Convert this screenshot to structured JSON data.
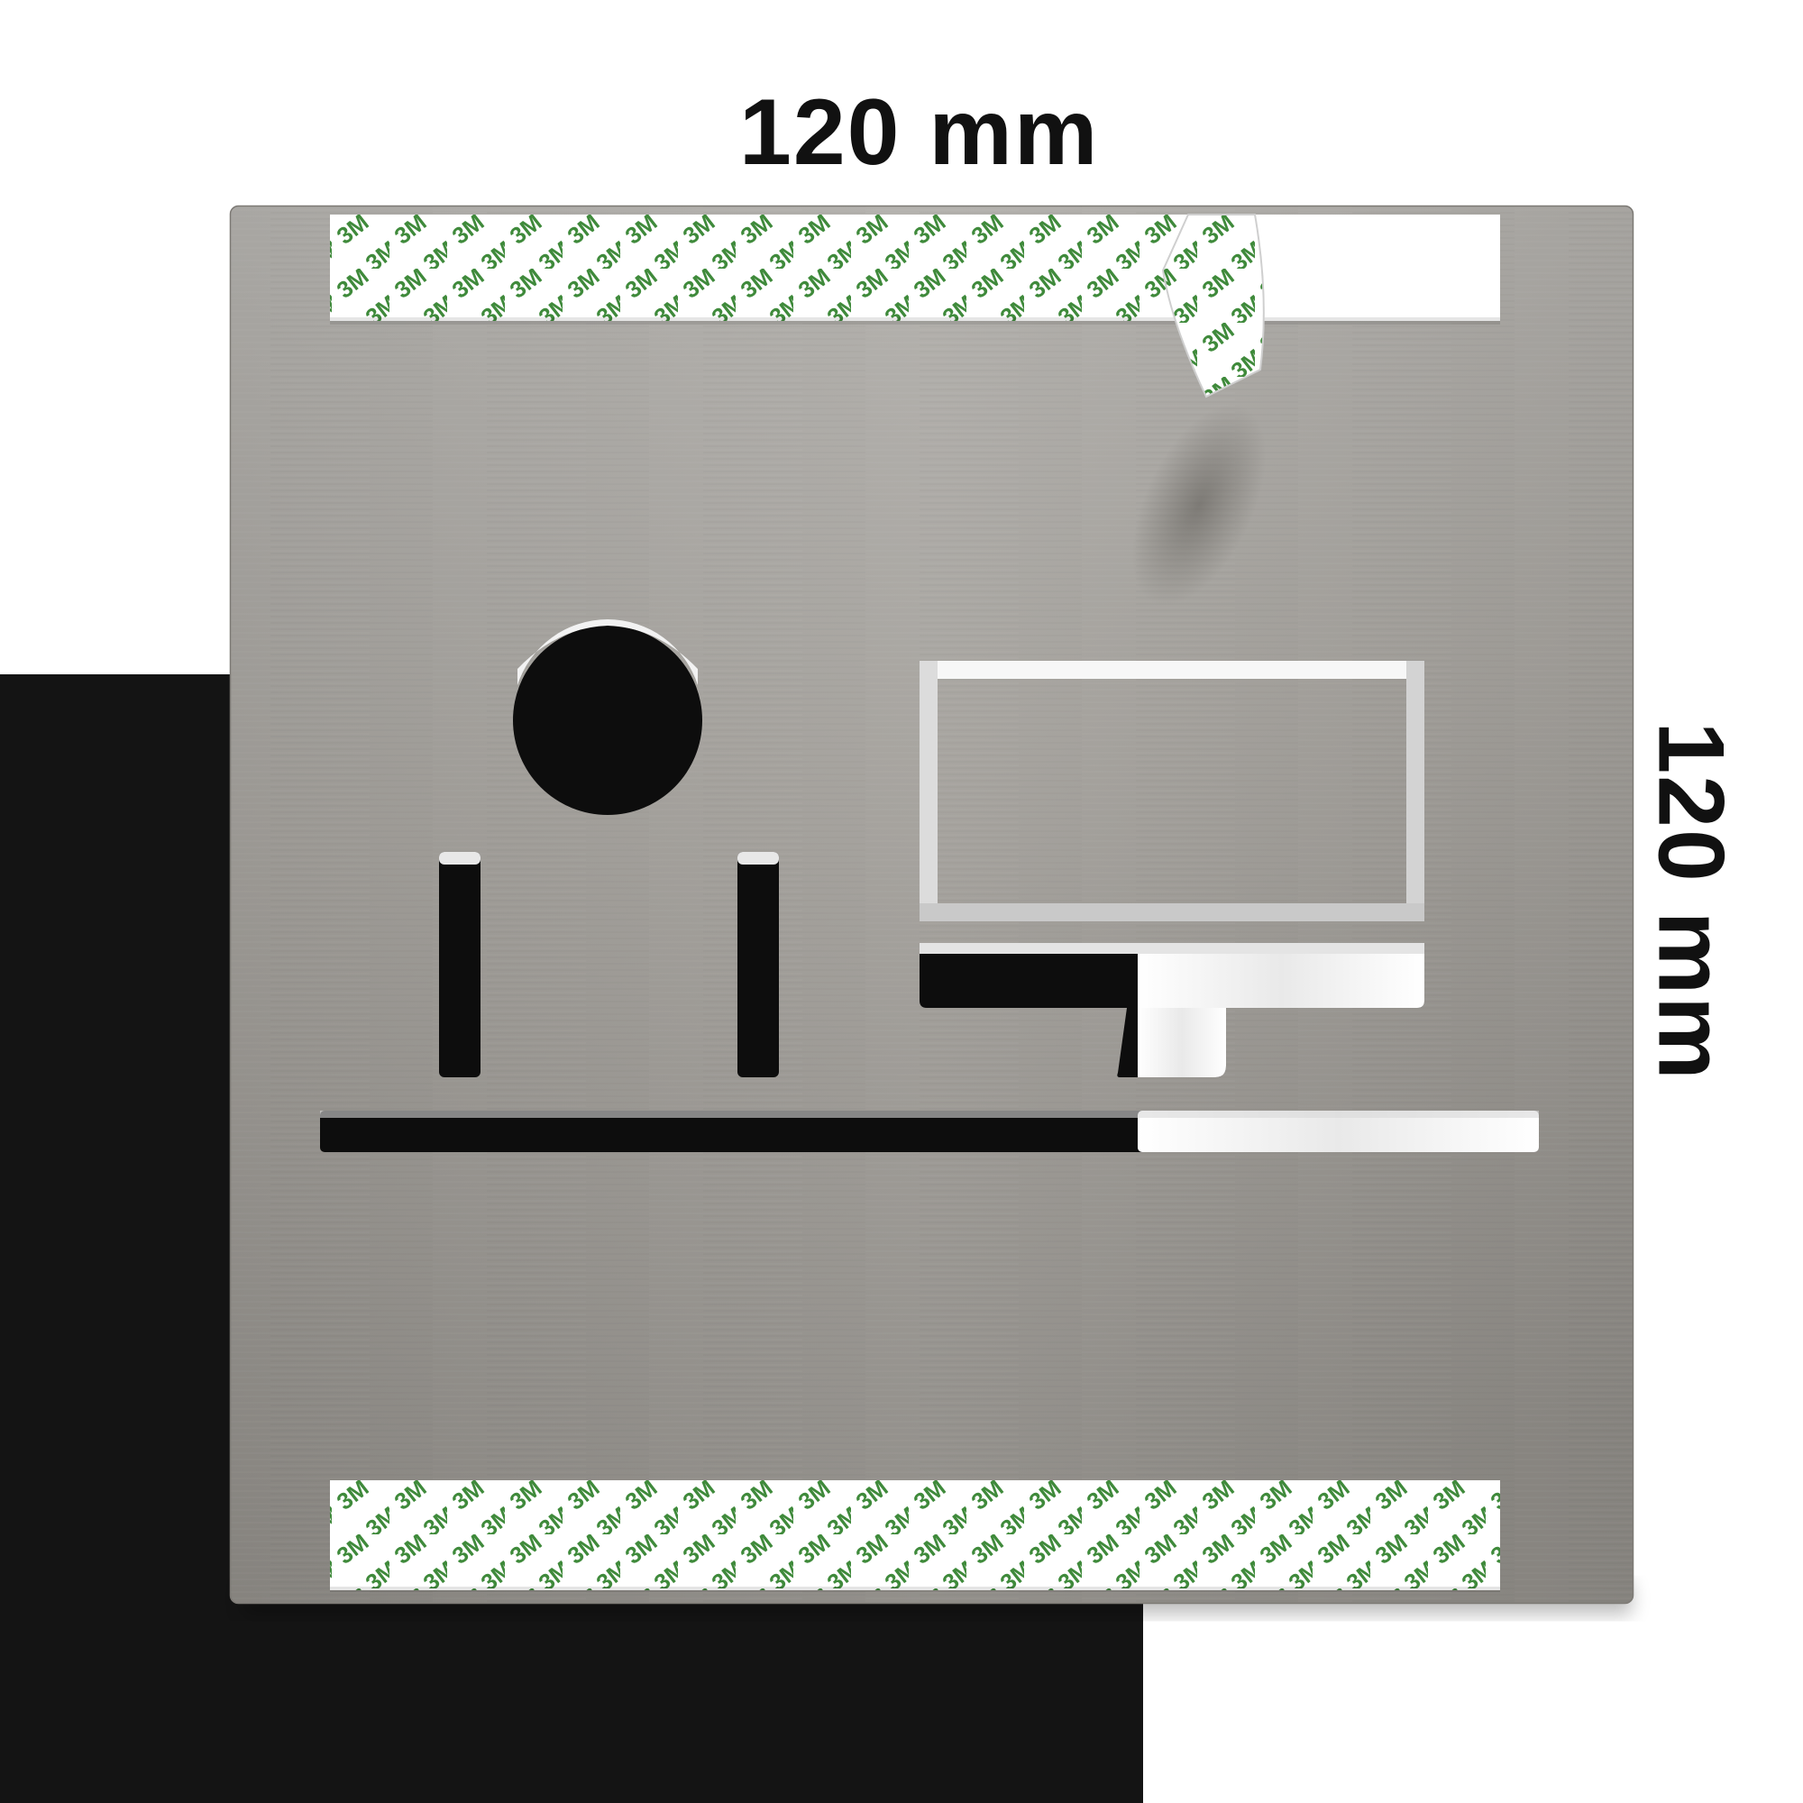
{
  "dimensions": {
    "width_label": "120 mm",
    "height_label": "120 mm"
  },
  "tape": {
    "brand_mark": "3M",
    "mark_color": "#3f8a3b",
    "backing_color": "#ffffff"
  },
  "plate": {
    "material": "brushed stainless steel",
    "color": "#9c9995"
  },
  "pictogram": {
    "icon": "office-desk-computer-icon"
  },
  "colors": {
    "backdrop_dark": "#141414",
    "backdrop_light": "#ffffff",
    "label": "#111111"
  }
}
